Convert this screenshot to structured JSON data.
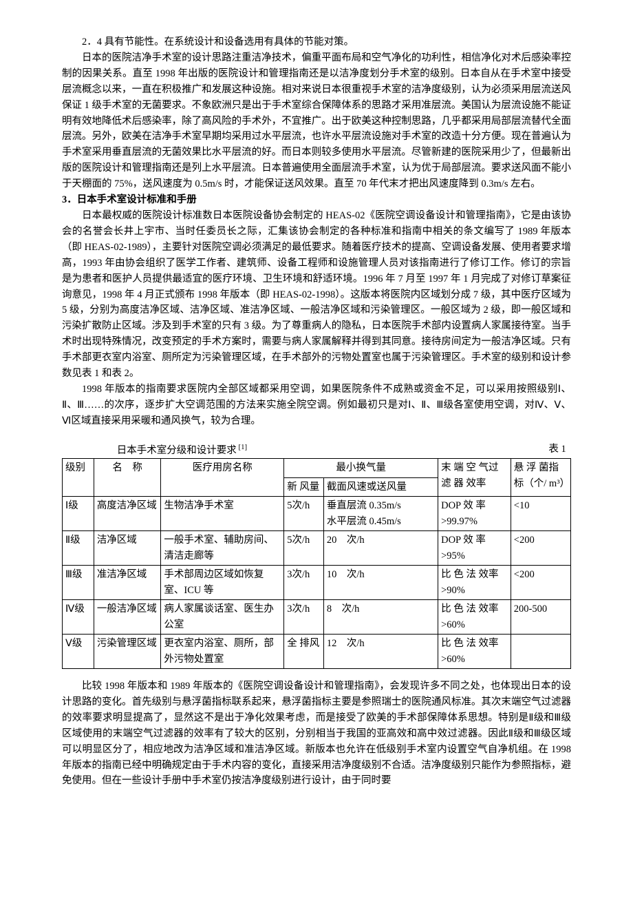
{
  "paragraphs": {
    "p1": "2．4 具有节能性。在系统设计和设备选用有具体的节能对策。",
    "p2": "日本的医院洁净手术室的设计思路注重洁净技术，偏重平面布局和空气净化的功利性，相信净化对术后感染率控制的因果关系。直至 1998 年出版的医院设计和管理指南还是以洁净度划分手术室的级别。日本自从在手术室中接受层流概念以来，一直在积极推广和发展这种设施。相对来说日本很重视手术室的洁净度级别，认为必须采用层流送风保证 1 级手术室的无菌要求。不象欧洲只是出于手术室综合保障体系的思路才采用准层流。美国认为层流设施不能证明有效地降低术后感染率，除了高风险的手术外，不宜推广。出于欧美这种控制思路，几乎都采用局部层流替代全面层流。另外，欧美在洁净手术室早期均采用过水平层流，也许水平层流设施对手术室的改造十分方便。现在普遍认为手术室采用垂直层流的无菌效果比水平层流的好。而日本则较多使用水平层流。尽管新建的医院采用少了，但最新出版的医院设计和管理指南还是列上水平层流。日本普遍使用全面层流手术室，认为优于局部层流。要求送风面不能小于天棚面的 75%，送风速度为 0.5m/s 时，才能保证送风效果。直至 70 年代末才把出风速度降到 0.3m/s 左右。",
    "h1": "3．日本手术室设计标准和手册",
    "p3": "日本最权威的医院设计标准数日本医院设备协会制定的 HEAS-02《医院空调设备设计和管理指南》，它是由该协会的名誉会长井上宇市、当时任委员长之际，汇集该协会制定的各种标准和指南中相关的条文编写了 1989 年版本（即 HEAS-02-1989），主要针对医院空调必须满足的最低要求。随着医疗技术的提高、空调设备发展、使用者要求增高，1993 年由协会组织了医学工作者、建筑师、设备工程师和设施管理人员对该指南进行了修订工作。修订的宗旨是为患者和医护人员提供最适宜的医疗环境、卫生环境和舒适环境。1996 年 7 月至 1997 年 1 月完成了对修订草案征询意见，1998 年 4 月正式颁布 1998 年版本（即 HEAS-02-1998）。这版本将医院内区域划分成 7 级，其中医疗区域为 5 级，分别为高度洁净区域、洁净区域、准洁净区域、一般洁净区域和污染管理区。一般区域为 2 级，即一般区域和污染扩散防止区域。涉及到手术室的只有 3 级。为了尊重病人的隐私，日本医院手术部内设置病人家属接待室。当手术时出现特殊情况，改变预定的手术方案时，需要与病人家属解释并得到其同意。接待房间定为一般洁净区域。只有手术部更衣室内浴室、厕所定为污染管理区域，在手术部外的污物处置室也属于污染管理区。手术室的级别和设计参数见表 1 和表 2。",
    "p4": "1998 年版本的指南要求医院内全部区域都采用空调，如果医院条件不成熟或资金不足，可以采用按照级别Ⅰ、Ⅱ、Ⅲ……的次序，逐步扩大空调范围的方法来实施全院空调。例如最初只是对Ⅰ、Ⅱ、Ⅲ级各室使用空调，对Ⅳ、Ⅴ、Ⅵ区域直接采用采暖和通风换气，较为合理。",
    "p5": "比较 1998 年版本和 1989 年版本的《医院空调设备设计和管理指南》，会发现许多不同之处，也体现出日本的设计思路的变化。首先级别与悬浮菌指标联系起来，悬浮菌指标主要是参照瑞士的医院通风标准。其次末端空气过滤器的效率要求明显提高了，显然这不是出于净化效果考虑，而是接受了欧美的手术部保障体系思想。特别是Ⅱ级和Ⅲ级区域使用的末端空气过滤器的效率有了较大的区别，分别相当于我国的亚高效和高中效过滤器。因此Ⅱ级和Ⅲ级区域可以明显区分了，相应地改为洁净区域和准洁净区域。新版本也允许在低级别手术室内设置空气自净机组。在 1998 年版本的指南已经中明确规定由于手术内容的变化，直接采用洁净度级别不合适。洁净度级别只能作为参照指标，避免使用。但在一些设计手册中手术室仍按洁净度级别进行设计，由于同时要"
  },
  "table1": {
    "caption_left_pre": "日本手术室分级和设计要求",
    "caption_left_sup": " [1]",
    "caption_right": "表 1",
    "col_widths": [
      "6.2%",
      "13.2%",
      "24.2%",
      "7.8%",
      "22.5%",
      "14.3%",
      "11.8%"
    ],
    "header": {
      "c1": "级别",
      "c2": "名　称",
      "c3": "医疗用房名称",
      "c4_group": "最小换气量",
      "c4a": "新 风量",
      "c4b": "截面风速或送风量",
      "c5": "末 端 空 气过 滤 器 效率",
      "c6": "悬 浮 菌指　　标（个/ m³）"
    },
    "rows": [
      {
        "c1": "Ⅰ级",
        "c2": "高度洁净区域",
        "c3": "生物洁净手术室",
        "c4a": "5次/h",
        "c4b": "垂直层流 0.35m/s\n水平层流 0.45m/s",
        "c5": "DOP 效 率>99.97%",
        "c6": "<10"
      },
      {
        "c1": "Ⅱ级",
        "c2": "洁净区域",
        "c3": "一般手术室、辅助房间、清洁走廊等",
        "c4a": "5次/h",
        "c4b": "20　次/h",
        "c5": "DOP 效 率>95%",
        "c6": "<200"
      },
      {
        "c1": "Ⅲ级",
        "c2": "准洁净区域",
        "c3": "手术部周边区域如恢复室、ICU 等",
        "c4a": "3次/h",
        "c4b": "10　次/h",
        "c5": "比 色 法 效率>90%",
        "c6": "<200"
      },
      {
        "c1": "Ⅳ级",
        "c2": "一般洁净区域",
        "c3": "病人家属谈话室、医生办公室",
        "c4a": "3次/h",
        "c4b": "8　次/h",
        "c5": "比 色 法 效率>60%",
        "c6": "200-500"
      },
      {
        "c1": "Ⅴ级",
        "c2": "污染管理区域",
        "c3": "更衣室内浴室、厕所，部外污物处置室",
        "c4a": "全 排风",
        "c4b": "12　次/h",
        "c5": "比 色 法 效率>60%",
        "c6": ""
      }
    ]
  }
}
